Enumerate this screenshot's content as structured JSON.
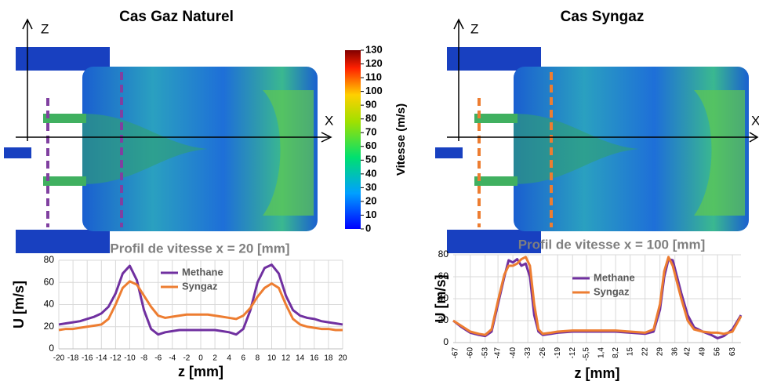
{
  "figure": {
    "panels": [
      {
        "title": "Cas Gaz Naturel",
        "z_label": "Z",
        "x_label": "X"
      },
      {
        "title": "Cas Syngaz",
        "z_label": "Z",
        "x_label": "X"
      }
    ],
    "colorbar": {
      "label": "Vitesse (m/s)",
      "lim": [
        0,
        130
      ],
      "ticks": [
        0,
        10,
        20,
        30,
        40,
        50,
        60,
        70,
        80,
        90,
        100,
        110,
        120,
        130
      ]
    }
  },
  "chart_data": [
    {
      "type": "line",
      "title": "Profil de vitesse x = 20 [mm]",
      "x_label": "z [mm]",
      "y_label": "U [m/s]",
      "x": [
        -20,
        -19,
        -18,
        -17,
        -16,
        -15,
        -14,
        -13,
        -12,
        -11,
        -10,
        -9,
        -8,
        -7,
        -6,
        -5,
        -4,
        -3,
        -2,
        -1,
        0,
        1,
        2,
        3,
        4,
        5,
        6,
        7,
        8,
        9,
        10,
        11,
        12,
        13,
        14,
        15,
        16,
        17,
        18,
        19,
        20
      ],
      "series": [
        {
          "name": "Methane",
          "color": "#7030a0",
          "values": [
            22,
            23,
            24,
            25,
            27,
            29,
            32,
            38,
            50,
            68,
            75,
            62,
            35,
            18,
            13,
            15,
            16,
            17,
            17,
            17,
            17,
            17,
            17,
            16,
            15,
            13,
            18,
            35,
            60,
            73,
            76,
            68,
            48,
            35,
            30,
            28,
            27,
            25,
            24,
            23,
            22
          ]
        },
        {
          "name": "Syngaz",
          "color": "#ed7d31",
          "values": [
            17,
            18,
            18,
            19,
            20,
            21,
            22,
            27,
            40,
            55,
            61,
            58,
            48,
            38,
            30,
            28,
            29,
            30,
            31,
            31,
            31,
            31,
            30,
            29,
            28,
            27,
            30,
            37,
            47,
            55,
            59,
            55,
            40,
            27,
            22,
            20,
            19,
            18,
            18,
            17,
            17
          ]
        }
      ],
      "xlim": [
        -20,
        20
      ],
      "xticks": [
        -20,
        -18,
        -16,
        -14,
        -12,
        -10,
        -8,
        -6,
        -4,
        -2,
        0,
        2,
        4,
        6,
        8,
        10,
        12,
        14,
        16,
        18,
        20
      ],
      "ylim": [
        0,
        80
      ],
      "yticks": [
        0,
        20,
        40,
        60,
        80
      ],
      "grid": true,
      "legend": "top"
    },
    {
      "type": "line",
      "title": "Profil de vitesse x = 100 [mm]",
      "x_label": "z [mm]",
      "y_label": "U [m/s]",
      "x": [
        -68,
        -64,
        -60,
        -56,
        -53,
        -50,
        -47,
        -44,
        -42,
        -40,
        -38,
        -36,
        -34,
        -32,
        -30,
        -28,
        -26,
        -22,
        -19,
        -12,
        -5.5,
        1.4,
        8.2,
        15,
        22,
        26,
        29,
        31,
        33,
        35,
        37,
        39,
        42,
        45,
        49,
        53,
        56,
        59,
        63,
        67
      ],
      "series": [
        {
          "name": "Methane",
          "color": "#7030a0",
          "values": [
            20,
            14,
            9,
            7,
            6,
            10,
            35,
            60,
            75,
            73,
            76,
            70,
            72,
            60,
            25,
            10,
            7,
            8,
            9,
            10,
            10,
            10,
            10,
            9,
            8,
            10,
            30,
            60,
            76,
            75,
            60,
            45,
            25,
            14,
            10,
            7,
            4,
            6,
            12,
            25
          ]
        },
        {
          "name": "Syngaz",
          "color": "#ed7d31",
          "values": [
            20,
            15,
            10,
            8,
            7,
            12,
            38,
            62,
            70,
            70,
            72,
            76,
            78,
            70,
            35,
            12,
            8,
            9,
            10,
            11,
            11,
            11,
            11,
            10,
            9,
            12,
            35,
            65,
            78,
            70,
            55,
            40,
            20,
            12,
            10,
            9,
            9,
            8,
            10,
            24
          ]
        }
      ],
      "xlim": [
        -68,
        67
      ],
      "xticks": [
        -67,
        -60,
        -53,
        -47,
        -40,
        -33,
        -26,
        -19,
        -12,
        {
          "value": -5.5,
          "label": "-5,5"
        },
        {
          "value": 1.4,
          "label": "1,4"
        },
        {
          "value": 8.2,
          "label": "8,2"
        },
        15,
        22,
        29,
        36,
        42,
        49,
        56,
        63
      ],
      "ylim": [
        0,
        80
      ],
      "yticks": [
        0,
        20,
        40,
        60,
        80
      ],
      "grid": true,
      "legend": "top"
    }
  ]
}
